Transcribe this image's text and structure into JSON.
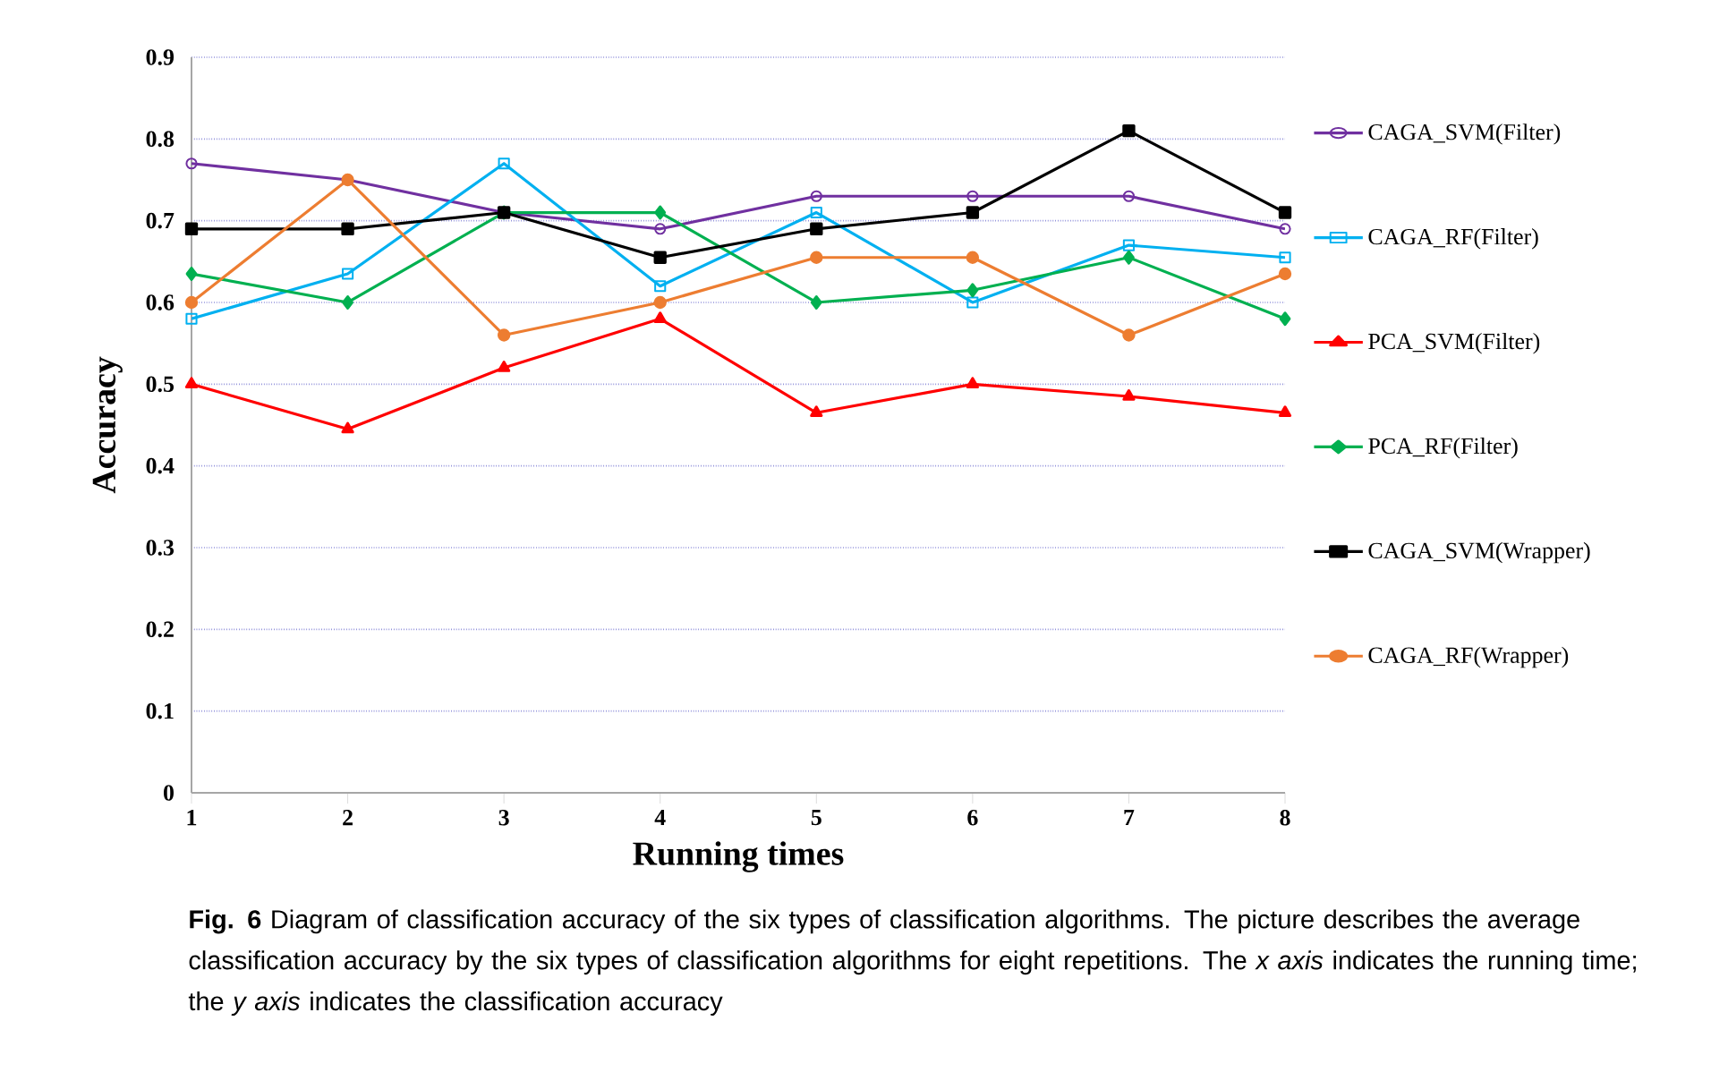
{
  "chart_data": {
    "type": "line",
    "xlabel": "Running times",
    "ylabel": "Accuracy",
    "x": [
      1,
      2,
      3,
      4,
      5,
      6,
      7,
      8
    ],
    "xlim": [
      1,
      8
    ],
    "xticks": [
      1,
      2,
      3,
      4,
      5,
      6,
      7,
      8
    ],
    "ylim": [
      0,
      0.9
    ],
    "yticks": [
      0,
      0.1,
      0.2,
      0.3,
      0.4,
      0.5,
      0.6,
      0.7,
      0.8,
      0.9
    ],
    "grid": "y",
    "legend": "right",
    "line_style": "solid",
    "series": [
      {
        "name": "CAGA_SVM(Filter)",
        "color": "#7030a0",
        "marker": "circle",
        "values": [
          0.77,
          0.75,
          0.71,
          0.69,
          0.73,
          0.73,
          0.73,
          0.69
        ]
      },
      {
        "name": "CAGA_RF(Filter)",
        "color": "#00b0f0",
        "marker": "square",
        "values": [
          0.58,
          0.635,
          0.77,
          0.62,
          0.71,
          0.6,
          0.67,
          0.655
        ]
      },
      {
        "name": "PCA_SVM(Filter)",
        "color": "#ff0000",
        "marker": "triangle",
        "values": [
          0.5,
          0.445,
          0.52,
          0.58,
          0.465,
          0.5,
          0.485,
          0.465
        ]
      },
      {
        "name": "PCA_RF(Filter)",
        "color": "#00b050",
        "marker": "diamond",
        "values": [
          0.635,
          0.6,
          0.71,
          0.71,
          0.6,
          0.615,
          0.655,
          0.58
        ]
      },
      {
        "name": "CAGA_SVM(Wrapper)",
        "color": "#000000",
        "marker": "square",
        "values": [
          0.69,
          0.69,
          0.71,
          0.655,
          0.69,
          0.71,
          0.81,
          0.71
        ]
      },
      {
        "name": "CAGA_RF(Wrapper)",
        "color": "#ed7d31",
        "marker": "circle",
        "values": [
          0.6,
          0.75,
          0.56,
          0.6,
          0.655,
          0.655,
          0.56,
          0.635
        ]
      }
    ],
    "annotations": [
      "**Fig. 6** Diagram of classification accuracy of the six types of classification algorithms. The picture describes the average classification accuracy by the six types of classification algorithms for eight repetitions. The *x axis* indicates the running time; the *y axis* indicates the classification accuracy"
    ]
  }
}
